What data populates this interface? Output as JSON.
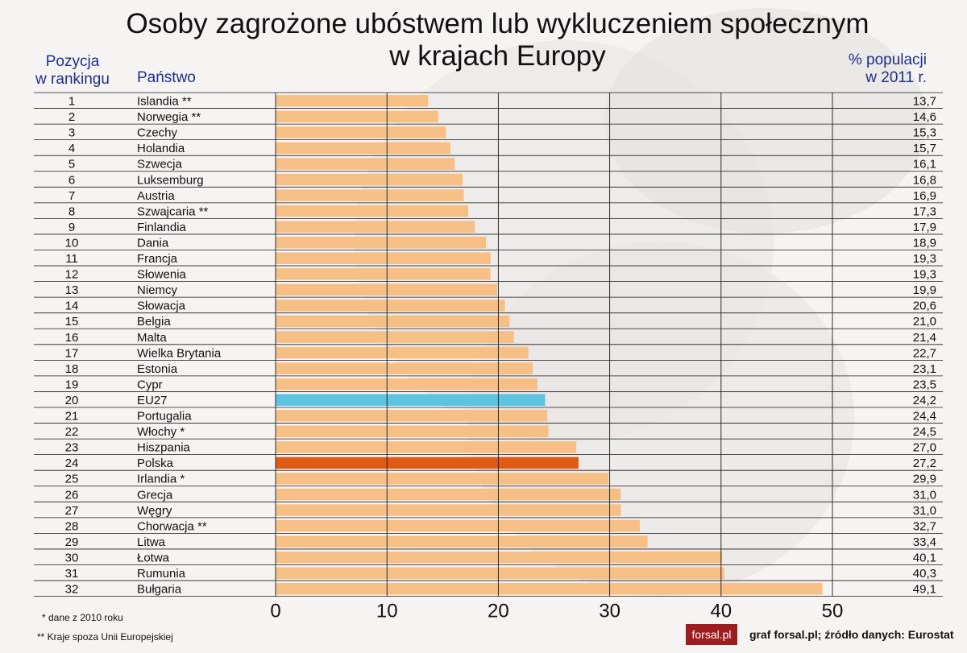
{
  "title": [
    "Osoby zagrożone ubóstwem lub wykluczeniem społecznym",
    "w krajach Europy"
  ],
  "headers": {
    "rank": [
      "Pozycja",
      "w rankingu"
    ],
    "country": "Państwo",
    "value": [
      "% populacji",
      "w 2011 r."
    ]
  },
  "notes": [
    "* dane z 2010 roku",
    "** Kraje spoza Unii Europejskiej"
  ],
  "logo_text": "forsal.pl",
  "source": "graf forsal.pl; źródło danych: Eurostat",
  "colors": {
    "bar": "#f6bf85",
    "eu": "#5cc3e0",
    "poland": "#e05a12",
    "axis_text": "#111111"
  },
  "chart_data": {
    "type": "bar",
    "orientation": "horizontal",
    "xlim": [
      0,
      50
    ],
    "xticks": [
      0,
      10,
      20,
      30,
      40,
      50
    ],
    "rows": [
      {
        "rank": "1",
        "country": "Islandia **",
        "value": 13.7,
        "label": "13,7"
      },
      {
        "rank": "2",
        "country": "Norwegia **",
        "value": 14.6,
        "label": "14,6"
      },
      {
        "rank": "3",
        "country": "Czechy",
        "value": 15.3,
        "label": "15,3"
      },
      {
        "rank": "4",
        "country": "Holandia",
        "value": 15.7,
        "label": "15,7"
      },
      {
        "rank": "5",
        "country": "Szwecja",
        "value": 16.1,
        "label": "16,1"
      },
      {
        "rank": "6",
        "country": "Luksemburg",
        "value": 16.8,
        "label": "16,8"
      },
      {
        "rank": "7",
        "country": "Austria",
        "value": 16.9,
        "label": "16,9"
      },
      {
        "rank": "8",
        "country": "Szwajcaria **",
        "value": 17.3,
        "label": "17,3"
      },
      {
        "rank": "9",
        "country": "Finlandia",
        "value": 17.9,
        "label": "17,9"
      },
      {
        "rank": "10",
        "country": "Dania",
        "value": 18.9,
        "label": "18,9"
      },
      {
        "rank": "11",
        "country": "Francja",
        "value": 19.3,
        "label": "19,3"
      },
      {
        "rank": "12",
        "country": "Słowenia",
        "value": 19.3,
        "label": "19,3"
      },
      {
        "rank": "13",
        "country": "Niemcy",
        "value": 19.9,
        "label": "19,9"
      },
      {
        "rank": "14",
        "country": "Słowacja",
        "value": 20.6,
        "label": "20,6"
      },
      {
        "rank": "15",
        "country": "Belgia",
        "value": 21.0,
        "label": "21,0"
      },
      {
        "rank": "16",
        "country": "Malta",
        "value": 21.4,
        "label": "21,4"
      },
      {
        "rank": "17",
        "country": "Wielka Brytania",
        "value": 22.7,
        "label": "22,7"
      },
      {
        "rank": "18",
        "country": "Estonia",
        "value": 23.1,
        "label": "23,1"
      },
      {
        "rank": "19",
        "country": "Cypr",
        "value": 23.5,
        "label": "23,5"
      },
      {
        "rank": "20",
        "country": "EU27",
        "value": 24.2,
        "label": "24,2",
        "highlight": "eu"
      },
      {
        "rank": "21",
        "country": "Portugalia",
        "value": 24.4,
        "label": "24,4"
      },
      {
        "rank": "22",
        "country": "Włochy *",
        "value": 24.5,
        "label": "24,5"
      },
      {
        "rank": "23",
        "country": "Hiszpania",
        "value": 27.0,
        "label": "27,0"
      },
      {
        "rank": "24",
        "country": "Polska",
        "value": 27.2,
        "label": "27,2",
        "highlight": "poland"
      },
      {
        "rank": "25",
        "country": "Irlandia *",
        "value": 29.9,
        "label": "29,9"
      },
      {
        "rank": "26",
        "country": "Grecja",
        "value": 31.0,
        "label": "31,0"
      },
      {
        "rank": "27",
        "country": "Węgry",
        "value": 31.0,
        "label": "31,0"
      },
      {
        "rank": "28",
        "country": "Chorwacja **",
        "value": 32.7,
        "label": "32,7"
      },
      {
        "rank": "29",
        "country": "Litwa",
        "value": 33.4,
        "label": "33,4"
      },
      {
        "rank": "30",
        "country": "Łotwa",
        "value": 40.1,
        "label": "40,1"
      },
      {
        "rank": "31",
        "country": "Rumunia",
        "value": 40.3,
        "label": "40,3"
      },
      {
        "rank": "32",
        "country": "Bułgaria",
        "value": 49.1,
        "label": "49,1"
      }
    ]
  }
}
